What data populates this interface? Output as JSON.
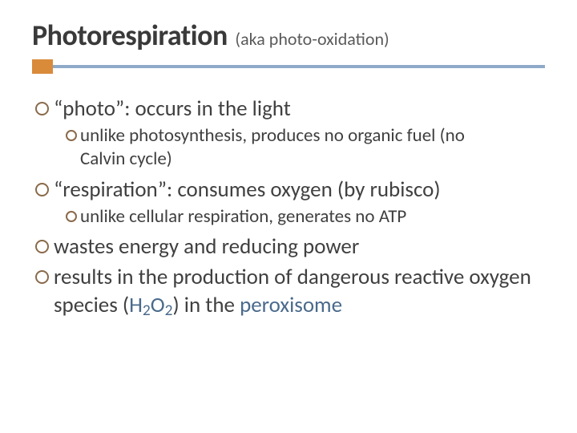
{
  "title": {
    "main": "Photorespiration",
    "sub": "(aka photo-oxidation)",
    "main_color": "#3a3a3a",
    "main_fontsize": 36,
    "sub_color": "#5a5a5a",
    "sub_fontsize": 22
  },
  "accent": {
    "orange_color": "#d98b3a",
    "blue_color": "#8faac9",
    "orange_width": 26,
    "orange_height": 18,
    "blue_height": 4
  },
  "bullet_circle_color": "#8a6a4a",
  "text_color": "#404040",
  "highlight_color": "#4a6a8c",
  "fontsize_l1": 27,
  "fontsize_l2": 23,
  "bullets": {
    "b1": "“photo”: occurs in the light",
    "b1a": "unlike photosynthesis, produces no organic fuel (no Calvin cycle)",
    "b2": "“respiration”: consumes oxygen (by rubisco)",
    "b2a": "unlike cellular respiration, generates no ATP",
    "b3": "wastes energy and reducing power",
    "b4_pre": "results in the production of dangerous reactive oxygen species (",
    "b4_h2o2": "H2O2",
    "b4_mid": ") in the ",
    "b4_perox": "peroxisome"
  }
}
